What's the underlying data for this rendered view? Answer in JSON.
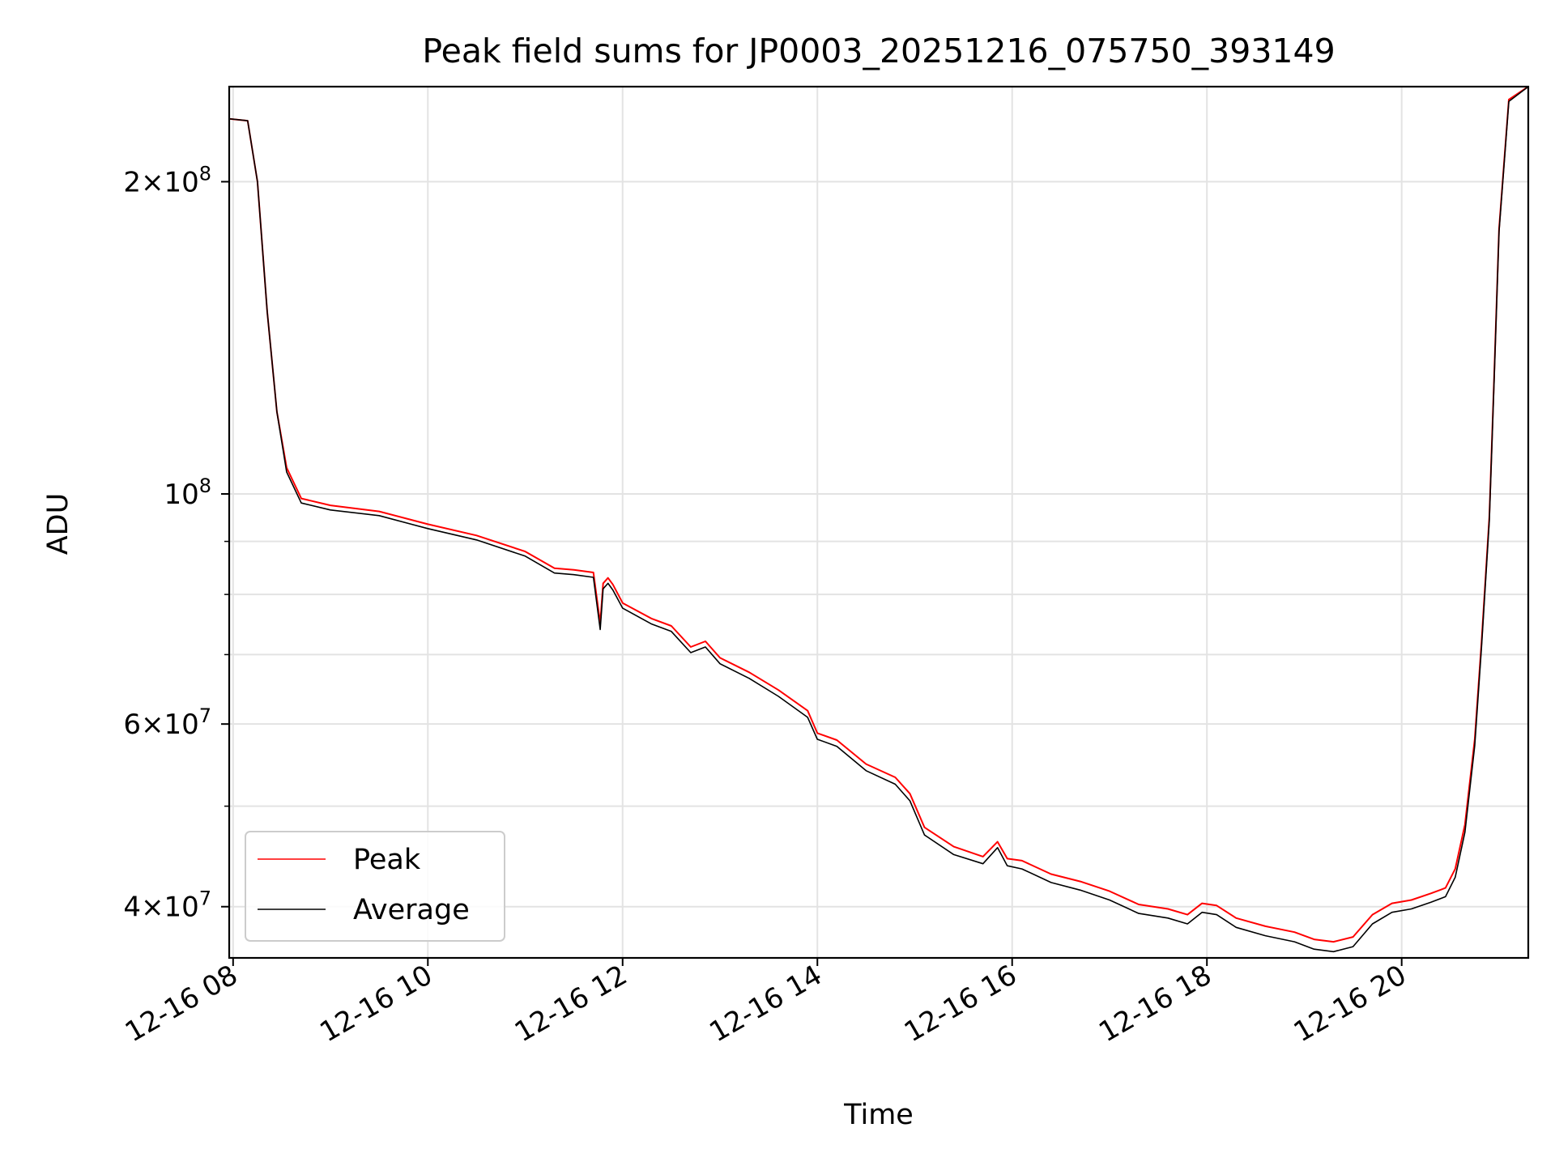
{
  "chart_data": {
    "type": "line",
    "title": "Peak field sums for JP0003_20251216_075750_393149",
    "xlabel": "Time",
    "ylabel": "ADU",
    "yscale": "log",
    "grid": true,
    "legend_position": "lower-left",
    "xlim_hours": [
      7.96,
      21.3
    ],
    "ylim": [
      35700000,
      247000000
    ],
    "x_ticks": [
      {
        "hour": 8,
        "label": "12-16 08"
      },
      {
        "hour": 10,
        "label": "12-16 10"
      },
      {
        "hour": 12,
        "label": "12-16 12"
      },
      {
        "hour": 14,
        "label": "12-16 14"
      },
      {
        "hour": 16,
        "label": "12-16 16"
      },
      {
        "hour": 18,
        "label": "12-16 18"
      },
      {
        "hour": 20,
        "label": "12-16 20"
      }
    ],
    "y_ticks": [
      {
        "value": 40000000,
        "mantissa": "4",
        "exponent": "7"
      },
      {
        "value": 60000000,
        "mantissa": "6",
        "exponent": "7"
      },
      {
        "value": 100000000,
        "mantissa": "",
        "exponent": "8"
      },
      {
        "value": 200000000,
        "mantissa": "2",
        "exponent": "8"
      }
    ],
    "y_minor_ticks": [
      50000000,
      70000000,
      80000000,
      90000000
    ],
    "series": [
      {
        "name": "Peak",
        "color": "#ff0000",
        "x_hours": [
          7.96,
          8.15,
          8.25,
          8.35,
          8.45,
          8.55,
          8.7,
          9.0,
          9.5,
          10.0,
          10.5,
          11.0,
          11.3,
          11.5,
          11.7,
          11.77,
          11.8,
          11.85,
          11.9,
          12.0,
          12.3,
          12.5,
          12.7,
          12.85,
          13.0,
          13.3,
          13.6,
          13.9,
          14.0,
          14.2,
          14.5,
          14.8,
          14.95,
          15.1,
          15.4,
          15.7,
          15.85,
          15.95,
          16.1,
          16.4,
          16.7,
          17.0,
          17.3,
          17.6,
          17.8,
          17.95,
          18.1,
          18.3,
          18.6,
          18.9,
          19.1,
          19.3,
          19.5,
          19.7,
          19.9,
          20.1,
          20.3,
          20.45,
          20.55,
          20.65,
          20.75,
          20.82,
          20.9,
          20.95,
          21.0,
          21.1,
          21.3
        ],
        "values": [
          230000000,
          229000000,
          200000000,
          150000000,
          120000000,
          106000000,
          99000000,
          97500000,
          96200000,
          93500000,
          91200000,
          88000000,
          84800000,
          84500000,
          84000000,
          75000000,
          82000000,
          83000000,
          81800000,
          78500000,
          75800000,
          74600000,
          71200000,
          72100000,
          69500000,
          67300000,
          64700000,
          61800000,
          58800000,
          57900000,
          54900000,
          53300000,
          51400000,
          47700000,
          45700000,
          44700000,
          46200000,
          44500000,
          44300000,
          43000000,
          42300000,
          41400000,
          40200000,
          39800000,
          39300000,
          40300000,
          40100000,
          39000000,
          38300000,
          37800000,
          37200000,
          37000000,
          37400000,
          39300000,
          40300000,
          40600000,
          41200000,
          41700000,
          43500000,
          48000000,
          58000000,
          72000000,
          95000000,
          130000000,
          180000000,
          240000000,
          247000000
        ]
      },
      {
        "name": "Average",
        "color": "#000000",
        "x_hours": [
          7.96,
          8.15,
          8.25,
          8.35,
          8.45,
          8.55,
          8.7,
          9.0,
          9.5,
          10.0,
          10.5,
          11.0,
          11.3,
          11.5,
          11.7,
          11.77,
          11.8,
          11.85,
          11.9,
          12.0,
          12.3,
          12.5,
          12.7,
          12.85,
          13.0,
          13.3,
          13.6,
          13.9,
          14.0,
          14.2,
          14.5,
          14.8,
          14.95,
          15.1,
          15.4,
          15.7,
          15.85,
          15.95,
          16.1,
          16.4,
          16.7,
          17.0,
          17.3,
          17.6,
          17.8,
          17.95,
          18.1,
          18.3,
          18.6,
          18.9,
          19.1,
          19.3,
          19.5,
          19.7,
          19.9,
          20.1,
          20.3,
          20.45,
          20.55,
          20.65,
          20.75,
          20.82,
          20.9,
          20.95,
          21.0,
          21.1,
          21.3
        ],
        "values": [
          230000000,
          229000000,
          200000000,
          150000000,
          120000000,
          105000000,
          98000000,
          96500000,
          95300000,
          92600000,
          90300000,
          87100000,
          83900000,
          83600000,
          83100000,
          74000000,
          81000000,
          82000000,
          80800000,
          77600000,
          74900000,
          73700000,
          70300000,
          71200000,
          68600000,
          66400000,
          63800000,
          60900000,
          58000000,
          57100000,
          54100000,
          52500000,
          50600000,
          46900000,
          44900000,
          44000000,
          45600000,
          43800000,
          43500000,
          42200000,
          41500000,
          40600000,
          39400000,
          39000000,
          38500000,
          39500000,
          39300000,
          38200000,
          37500000,
          37000000,
          36400000,
          36200000,
          36600000,
          38500000,
          39500000,
          39800000,
          40400000,
          40900000,
          42700000,
          47200000,
          57200000,
          71200000,
          94200000,
          129000000,
          179000000,
          239000000,
          247000000
        ]
      }
    ]
  }
}
